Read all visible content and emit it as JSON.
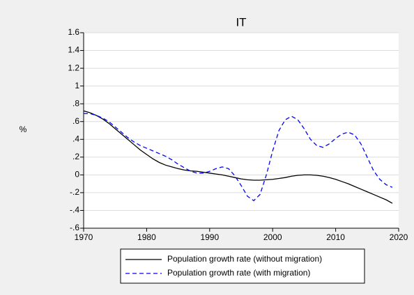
{
  "chart_data": {
    "type": "line",
    "title": "IT",
    "y_label": "%",
    "x": [
      1970,
      1971,
      1972,
      1973,
      1974,
      1975,
      1976,
      1977,
      1978,
      1979,
      1980,
      1981,
      1982,
      1983,
      1984,
      1985,
      1986,
      1987,
      1988,
      1989,
      1990,
      1991,
      1992,
      1993,
      1994,
      1995,
      1996,
      1997,
      1998,
      1999,
      2000,
      2001,
      2002,
      2003,
      2004,
      2005,
      2006,
      2007,
      2008,
      2009,
      2010,
      2011,
      2012,
      2013,
      2014,
      2015,
      2016,
      2017,
      2018,
      2019
    ],
    "series": [
      {
        "name": "Population growth rate (without migration)",
        "color": "#000000",
        "dash": false,
        "values": [
          0.72,
          0.7,
          0.67,
          0.63,
          0.58,
          0.52,
          0.46,
          0.4,
          0.34,
          0.28,
          0.23,
          0.18,
          0.14,
          0.11,
          0.09,
          0.07,
          0.055,
          0.045,
          0.04,
          0.03,
          0.02,
          0.01,
          0.0,
          -0.015,
          -0.03,
          -0.045,
          -0.055,
          -0.06,
          -0.06,
          -0.055,
          -0.05,
          -0.04,
          -0.03,
          -0.015,
          -0.005,
          0.0,
          0.0,
          -0.005,
          -0.015,
          -0.03,
          -0.05,
          -0.075,
          -0.1,
          -0.13,
          -0.16,
          -0.19,
          -0.22,
          -0.25,
          -0.28,
          -0.32
        ]
      },
      {
        "name": "Population growth rate (with migration)",
        "color": "#0000ff",
        "dash": true,
        "values": [
          0.69,
          0.69,
          0.67,
          0.64,
          0.6,
          0.54,
          0.48,
          0.42,
          0.37,
          0.33,
          0.3,
          0.27,
          0.24,
          0.21,
          0.17,
          0.12,
          0.08,
          0.04,
          0.02,
          0.02,
          0.04,
          0.07,
          0.09,
          0.07,
          -0.01,
          -0.12,
          -0.24,
          -0.29,
          -0.22,
          0.0,
          0.27,
          0.5,
          0.62,
          0.66,
          0.62,
          0.52,
          0.4,
          0.33,
          0.31,
          0.35,
          0.41,
          0.46,
          0.48,
          0.45,
          0.35,
          0.2,
          0.05,
          -0.05,
          -0.11,
          -0.14
        ]
      }
    ],
    "xlim": [
      1970,
      2020
    ],
    "xticks": [
      1970,
      1980,
      1990,
      2000,
      2010,
      2020
    ],
    "ylim": [
      -0.6,
      1.6
    ],
    "yticks": [
      {
        "value": -0.6,
        "label": "-.6"
      },
      {
        "value": -0.4,
        "label": "-.4"
      },
      {
        "value": -0.2,
        "label": "-.2"
      },
      0,
      {
        "value": 0.2,
        "label": ".2"
      },
      {
        "value": 0.4,
        "label": ".4"
      },
      {
        "value": 0.6,
        "label": ".6"
      },
      {
        "value": 0.8,
        "label": ".8"
      },
      1,
      1.2,
      1.4,
      1.6
    ],
    "grid": true,
    "legend": "bottom"
  }
}
